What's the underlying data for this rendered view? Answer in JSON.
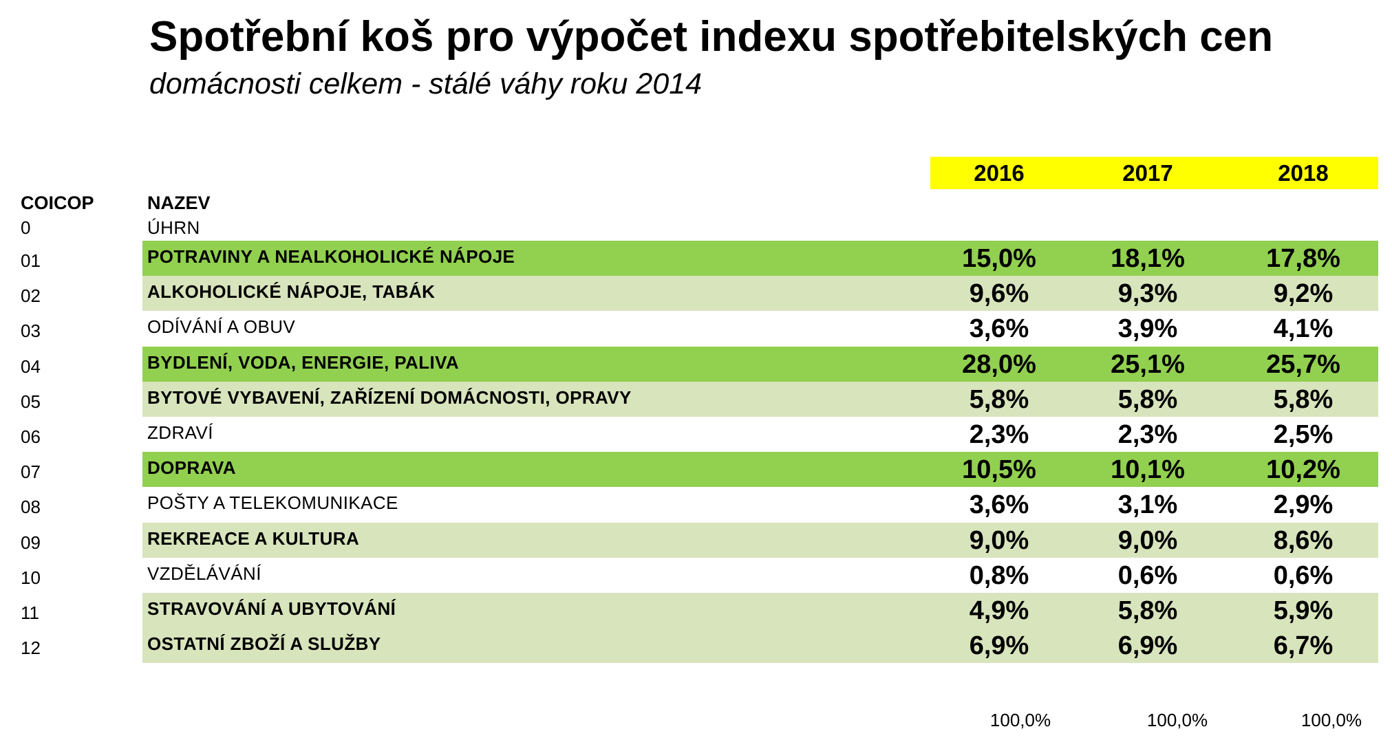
{
  "title": "Spotřební koš pro výpočet indexu spotřebitelských cen",
  "subtitle": "domácnosti celkem - stálé váhy roku 2014",
  "colors": {
    "year_header_bg": "#ffff00",
    "highlight_dark": "#92d050",
    "highlight_light": "#d8e4bc",
    "plain": "#ffffff"
  },
  "headers": {
    "code": "COICOP",
    "name": "NAZEV"
  },
  "years": [
    "2016",
    "2017",
    "2018"
  ],
  "total_row": {
    "code": "0",
    "name": "ÚHRN"
  },
  "rows": [
    {
      "code": "01",
      "name": "POTRAVINY A NEALKOHOLICKÉ NÁPOJE",
      "style": "dark",
      "bold": true,
      "v2016": "15,0%",
      "v2017": "18,1%",
      "v2018": "17,8%"
    },
    {
      "code": "02",
      "name": "ALKOHOLICKÉ NÁPOJE, TABÁK",
      "style": "light",
      "bold": true,
      "v2016": "9,6%",
      "v2017": "9,3%",
      "v2018": "9,2%"
    },
    {
      "code": "03",
      "name": "ODÍVÁNÍ A OBUV",
      "style": "plain",
      "bold": false,
      "v2016": "3,6%",
      "v2017": "3,9%",
      "v2018": "4,1%"
    },
    {
      "code": "04",
      "name": "BYDLENÍ, VODA, ENERGIE, PALIVA",
      "style": "dark",
      "bold": true,
      "v2016": "28,0%",
      "v2017": "25,1%",
      "v2018": "25,7%"
    },
    {
      "code": "05",
      "name": "BYTOVÉ VYBAVENÍ, ZAŘÍZENÍ DOMÁCNOSTI, OPRAVY",
      "style": "light",
      "bold": true,
      "v2016": "5,8%",
      "v2017": "5,8%",
      "v2018": "5,8%"
    },
    {
      "code": "06",
      "name": "ZDRAVÍ",
      "style": "plain",
      "bold": false,
      "v2016": "2,3%",
      "v2017": "2,3%",
      "v2018": "2,5%"
    },
    {
      "code": "07",
      "name": "DOPRAVA",
      "style": "dark",
      "bold": true,
      "v2016": "10,5%",
      "v2017": "10,1%",
      "v2018": "10,2%"
    },
    {
      "code": "08",
      "name": "POŠTY A TELEKOMUNIKACE",
      "style": "plain",
      "bold": false,
      "v2016": "3,6%",
      "v2017": "3,1%",
      "v2018": "2,9%"
    },
    {
      "code": "09",
      "name": "REKREACE  A KULTURA",
      "style": "light",
      "bold": true,
      "v2016": "9,0%",
      "v2017": "9,0%",
      "v2018": "8,6%"
    },
    {
      "code": "10",
      "name": "VZDĚLÁVÁNÍ",
      "style": "plain",
      "bold": false,
      "v2016": "0,8%",
      "v2017": "0,6%",
      "v2018": "0,6%"
    },
    {
      "code": "11",
      "name": "STRAVOVÁNÍ  A UBYTOVÁNÍ",
      "style": "light",
      "bold": true,
      "v2016": "4,9%",
      "v2017": "5,8%",
      "v2018": "5,9%"
    },
    {
      "code": "12",
      "name": "OSTATNÍ ZBOŽÍ A SLUŽBY",
      "style": "light",
      "bold": true,
      "v2016": "6,9%",
      "v2017": "6,9%",
      "v2018": "6,7%"
    }
  ],
  "totals": [
    "100,0%",
    "100,0%",
    "100,0%"
  ]
}
